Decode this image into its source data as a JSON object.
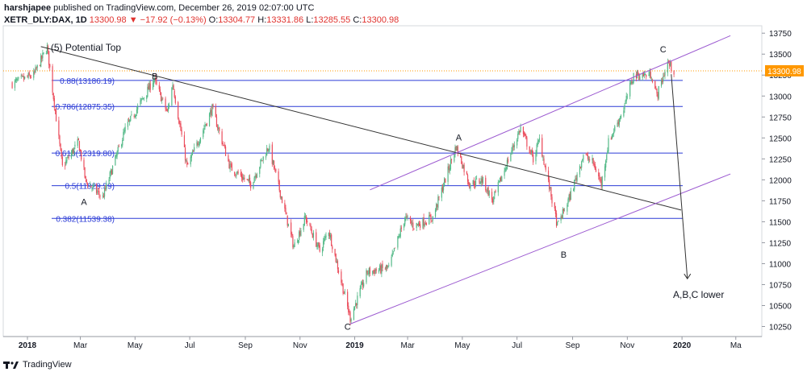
{
  "header": {
    "author": "harshjapee",
    "published_text": "published on TradingView.com, December 26, 2019 02:07:00 UTC",
    "symbol": "XETR_DLY:DAX, 1D",
    "last": "13300.98",
    "change": "▼ −17.92 (−0.13%)",
    "o_label": "O:",
    "o_value": "13304.77",
    "h_label": "H:",
    "h_value": "13331.86",
    "l_label": "L:",
    "l_value": "13285.55",
    "c_label": "C:",
    "c_value": "13300.98"
  },
  "footer": {
    "brand": "TradingView"
  },
  "colors": {
    "up": "#26a69a",
    "up_candle": "#53b987",
    "down": "#eb4d5c",
    "fib": "#2b3bd6",
    "channel": "#9b59d0",
    "trend": "#333333",
    "price_line": "#ff9800"
  },
  "chart_data": {
    "type": "candlestick",
    "ylim": [
      10130,
      13800
    ],
    "y_ticks": [
      10250,
      10500,
      10750,
      11000,
      11250,
      11500,
      11750,
      12000,
      12250,
      12500,
      12750,
      13000,
      13250,
      13500,
      13750
    ],
    "x_ticks": [
      {
        "label": "2018",
        "bold": true,
        "date": "2018-01-01"
      },
      {
        "label": "Mar",
        "date": "2018-03-01"
      },
      {
        "label": "May",
        "date": "2018-05-01"
      },
      {
        "label": "Jul",
        "date": "2018-07-01"
      },
      {
        "label": "Sep",
        "date": "2018-09-01"
      },
      {
        "label": "Nov",
        "date": "2018-11-01"
      },
      {
        "label": "2019",
        "bold": true,
        "date": "2019-01-01"
      },
      {
        "label": "Mar",
        "date": "2019-03-01"
      },
      {
        "label": "May",
        "date": "2019-05-01"
      },
      {
        "label": "Jul",
        "date": "2019-07-01"
      },
      {
        "label": "Sep",
        "date": "2019-09-01"
      },
      {
        "label": "Nov",
        "date": "2019-11-01"
      },
      {
        "label": "2020",
        "bold": true,
        "date": "2020-01-01"
      },
      {
        "label": "Ma",
        "date": "2020-03-01"
      }
    ],
    "last_price": {
      "value": 13300.98,
      "label": "13300.98"
    },
    "price_path": [
      [
        "2017-12-15",
        13150
      ],
      [
        "2018-01-08",
        13250
      ],
      [
        "2018-01-23",
        13580
      ],
      [
        "2018-02-09",
        12150
      ],
      [
        "2018-02-27",
        12450
      ],
      [
        "2018-03-07",
        11980
      ],
      [
        "2018-03-26",
        11790
      ],
      [
        "2018-04-20",
        12600
      ],
      [
        "2018-05-22",
        13200
      ],
      [
        "2018-06-06",
        12800
      ],
      [
        "2018-06-12",
        13150
      ],
      [
        "2018-06-28",
        12150
      ],
      [
        "2018-07-26",
        12850
      ],
      [
        "2018-08-15",
        12150
      ],
      [
        "2018-09-07",
        11950
      ],
      [
        "2018-09-27",
        12400
      ],
      [
        "2018-10-25",
        11200
      ],
      [
        "2018-11-07",
        11550
      ],
      [
        "2018-11-23",
        11150
      ],
      [
        "2018-12-03",
        11400
      ],
      [
        "2018-12-27",
        10350
      ],
      [
        "2019-01-15",
        10900
      ],
      [
        "2019-02-08",
        10950
      ],
      [
        "2019-02-26",
        11550
      ],
      [
        "2019-03-08",
        11450
      ],
      [
        "2019-03-29",
        11550
      ],
      [
        "2019-04-24",
        12400
      ],
      [
        "2019-05-09",
        11950
      ],
      [
        "2019-05-23",
        12000
      ],
      [
        "2019-06-04",
        11750
      ],
      [
        "2019-06-25",
        12350
      ],
      [
        "2019-07-05",
        12620
      ],
      [
        "2019-07-19",
        12250
      ],
      [
        "2019-07-26",
        12480
      ],
      [
        "2019-08-15",
        11450
      ],
      [
        "2019-08-29",
        11800
      ],
      [
        "2019-09-13",
        12300
      ],
      [
        "2019-09-24",
        12200
      ],
      [
        "2019-10-03",
        11950
      ],
      [
        "2019-10-11",
        12450
      ],
      [
        "2019-10-28",
        12850
      ],
      [
        "2019-11-08",
        13250
      ],
      [
        "2019-11-15",
        13250
      ],
      [
        "2019-11-28",
        13250
      ],
      [
        "2019-12-04",
        13000
      ],
      [
        "2019-12-16",
        13400
      ],
      [
        "2019-12-23",
        13300
      ]
    ],
    "fib_levels": [
      {
        "label": "0.88(13186.19)",
        "value": 13186.19
      },
      {
        "label": "0.786(12875.35)",
        "value": 12875.35
      },
      {
        "label": "0.618(12319.80)",
        "value": 12319.8
      },
      {
        "label": "0.5(11929.59)",
        "value": 11929.59
      },
      {
        "label": "0.382(11539.38)",
        "value": 11539.38
      }
    ],
    "fib_range": [
      "2018-06-30",
      "2019-12-31"
    ],
    "trend_line": [
      [
        "2018-01-16",
        13590
      ],
      [
        "2019-12-31",
        11640
      ]
    ],
    "channel_upper": [
      [
        "2019-01-18",
        11880
      ],
      [
        "2020-02-24",
        13720
      ]
    ],
    "channel_lower": [
      [
        "2018-12-27",
        10280
      ],
      [
        "2020-02-24",
        12070
      ]
    ],
    "projection_arrow": [
      [
        "2019-12-20",
        13260
      ],
      [
        "2020-01-07",
        10820
      ]
    ],
    "annotations": [
      {
        "text": "(5) Potential Top",
        "date": "2018-01-27",
        "value": 13540
      },
      {
        "text": "A",
        "date": "2018-03-05",
        "value": 11700
      },
      {
        "text": "B",
        "date": "2018-05-23",
        "value": 13200
      },
      {
        "text": "C",
        "date": "2018-12-24",
        "value": 10210
      },
      {
        "text": "A",
        "date": "2019-04-27",
        "value": 12470
      },
      {
        "text": "B",
        "date": "2019-08-22",
        "value": 11070
      },
      {
        "text": "C",
        "date": "2019-12-11",
        "value": 13520
      },
      {
        "text": "A,B,C lower",
        "date": "2019-12-22",
        "value": 10590
      }
    ]
  }
}
